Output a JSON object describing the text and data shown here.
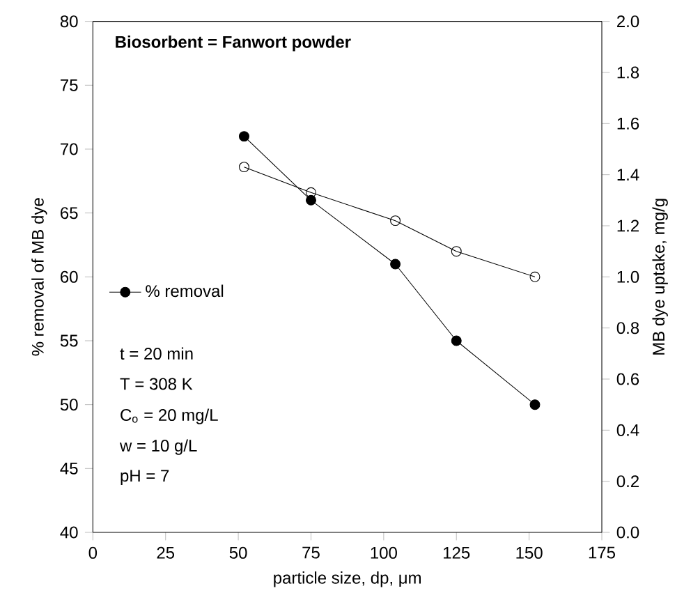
{
  "chart_data": {
    "type": "line",
    "xlabel": "particle size, dp, μm",
    "ylabel": "% removal of MB dye",
    "y2label": "MB dye uptake, mg/g",
    "annotations": [
      "Biosorbent = Fanwort powder",
      "t = 20 min",
      "T = 308 K",
      "C$_{o}$ = 20 mg/L",
      "w = 10 g/L",
      "pH = 7"
    ],
    "x": [
      52,
      75,
      104,
      125,
      152
    ],
    "series": [
      {
        "name": "% removal",
        "color": "#000000",
        "values": [
          71,
          66,
          61,
          55,
          50
        ],
        "marker": "circle"
      },
      {
        "color": "#000000",
        "values": [
          1.43,
          1.33,
          1.22,
          1.1,
          1.0
        ],
        "axis": "y2",
        "marker": "open circle"
      }
    ],
    "xlim": [
      0,
      175
    ],
    "xticks": [
      0,
      25,
      50,
      75,
      100,
      125,
      150,
      175
    ],
    "ylim": [
      40,
      80
    ],
    "yticks": [
      40,
      45,
      50,
      55,
      60,
      65,
      70,
      75,
      80
    ],
    "y2lim": [
      0,
      2.0
    ],
    "y2ticks": [
      {
        "value": 0,
        "label": "0.0"
      },
      {
        "value": 0.2,
        "label": "0.2"
      },
      {
        "value": 0.4,
        "label": "0.4"
      },
      {
        "value": 0.6,
        "label": "0.6"
      },
      {
        "value": 0.8,
        "label": "0.8"
      },
      {
        "value": 1.0,
        "label": "1.0"
      },
      {
        "value": 1.2,
        "label": "1.2"
      },
      {
        "value": 1.4,
        "label": "1.4"
      },
      {
        "value": 1.6,
        "label": "1.6"
      },
      {
        "value": 1.8,
        "label": "1.8"
      },
      {
        "value": 2.0,
        "label": "2.0"
      }
    ],
    "legend": "left",
    "grid": false
  }
}
